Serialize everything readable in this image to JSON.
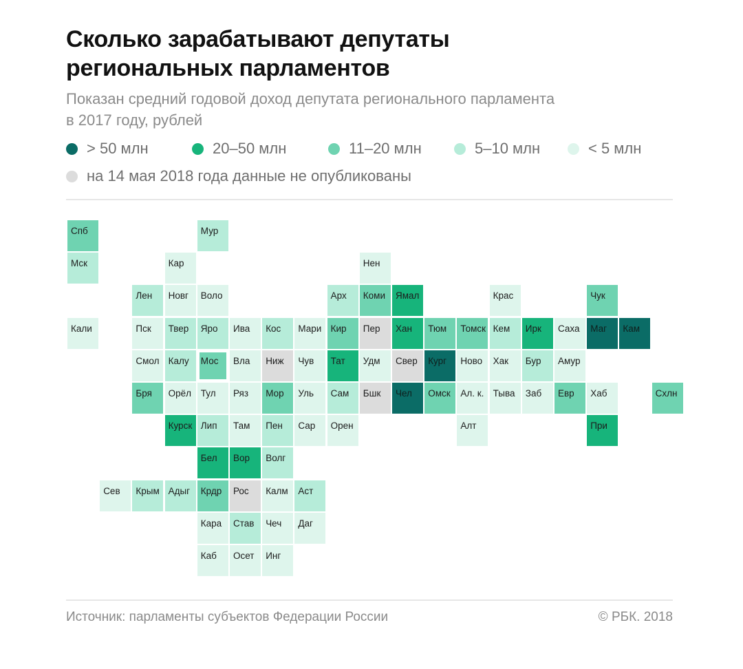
{
  "header": {
    "title_lines": [
      "Сколько зарабатывают депутаты",
      "региональных парламентов"
    ],
    "subtitle_lines": [
      "Показан средний годовой доход депутата регионального парламента",
      "в 2017 году, рублей"
    ]
  },
  "colors": {
    "gt50": "#0b6c66",
    "c20_50": "#17b47b",
    "c11_20": "#6fd3b1",
    "c5_10": "#b6ecd9",
    "lt5": "#def5ec",
    "nodata": "#dcdcdc"
  },
  "legend": [
    {
      "key": "gt50",
      "label": "> 50 млн"
    },
    {
      "key": "c20_50",
      "label": "20–50 млн"
    },
    {
      "key": "c11_20",
      "label": "11–20 млн"
    },
    {
      "key": "c5_10",
      "label": "5–10 млн"
    },
    {
      "key": "lt5",
      "label": "< 5 млн"
    }
  ],
  "legend_nodata": {
    "key": "nodata",
    "label": "на 14 мая 2018 года данные не опубликованы"
  },
  "regions": [
    {
      "label": "Спб",
      "col": 0,
      "row": 0,
      "cat": "c11_20"
    },
    {
      "label": "Мур",
      "col": 4,
      "row": 0,
      "cat": "c5_10"
    },
    {
      "label": "Мск",
      "col": 0,
      "row": 1,
      "cat": "c5_10"
    },
    {
      "label": "Кар",
      "col": 3,
      "row": 1,
      "cat": "lt5"
    },
    {
      "label": "Нен",
      "col": 9,
      "row": 1,
      "cat": "lt5"
    },
    {
      "label": "Лен",
      "col": 2,
      "row": 2,
      "cat": "c5_10"
    },
    {
      "label": "Новг",
      "col": 3,
      "row": 2,
      "cat": "lt5"
    },
    {
      "label": "Воло",
      "col": 4,
      "row": 2,
      "cat": "lt5"
    },
    {
      "label": "Арх",
      "col": 8,
      "row": 2,
      "cat": "c5_10"
    },
    {
      "label": "Коми",
      "col": 9,
      "row": 2,
      "cat": "c11_20"
    },
    {
      "label": "Ямал",
      "col": 10,
      "row": 2,
      "cat": "c20_50"
    },
    {
      "label": "Крас",
      "col": 13,
      "row": 2,
      "cat": "lt5"
    },
    {
      "label": "Чук",
      "col": 16,
      "row": 2,
      "cat": "c11_20"
    },
    {
      "label": "Кали",
      "col": 0,
      "row": 3,
      "cat": "lt5"
    },
    {
      "label": "Пск",
      "col": 2,
      "row": 3,
      "cat": "lt5"
    },
    {
      "label": "Твер",
      "col": 3,
      "row": 3,
      "cat": "c5_10"
    },
    {
      "label": "Яро",
      "col": 4,
      "row": 3,
      "cat": "c5_10"
    },
    {
      "label": "Ива",
      "col": 5,
      "row": 3,
      "cat": "lt5"
    },
    {
      "label": "Кос",
      "col": 6,
      "row": 3,
      "cat": "c5_10"
    },
    {
      "label": "Мари",
      "col": 7,
      "row": 3,
      "cat": "lt5"
    },
    {
      "label": "Кир",
      "col": 8,
      "row": 3,
      "cat": "c11_20"
    },
    {
      "label": "Пер",
      "col": 9,
      "row": 3,
      "cat": "nodata"
    },
    {
      "label": "Хан",
      "col": 10,
      "row": 3,
      "cat": "c20_50"
    },
    {
      "label": "Тюм",
      "col": 11,
      "row": 3,
      "cat": "c11_20"
    },
    {
      "label": "Томск",
      "col": 12,
      "row": 3,
      "cat": "c11_20"
    },
    {
      "label": "Кем",
      "col": 13,
      "row": 3,
      "cat": "c5_10"
    },
    {
      "label": "Ирк",
      "col": 14,
      "row": 3,
      "cat": "c20_50"
    },
    {
      "label": "Саха",
      "col": 15,
      "row": 3,
      "cat": "lt5"
    },
    {
      "label": "Маг",
      "col": 16,
      "row": 3,
      "cat": "gt50"
    },
    {
      "label": "Кам",
      "col": 17,
      "row": 3,
      "cat": "gt50"
    },
    {
      "label": "Смол",
      "col": 2,
      "row": 4,
      "cat": "lt5"
    },
    {
      "label": "Калу",
      "col": 3,
      "row": 4,
      "cat": "c5_10"
    },
    {
      "label": "Мос",
      "col": 4,
      "row": 4,
      "cat": "c11_20",
      "outlined": true
    },
    {
      "label": "Вла",
      "col": 5,
      "row": 4,
      "cat": "lt5"
    },
    {
      "label": "Ниж",
      "col": 6,
      "row": 4,
      "cat": "nodata"
    },
    {
      "label": "Чув",
      "col": 7,
      "row": 4,
      "cat": "lt5"
    },
    {
      "label": "Тат",
      "col": 8,
      "row": 4,
      "cat": "c20_50"
    },
    {
      "label": "Удм",
      "col": 9,
      "row": 4,
      "cat": "lt5"
    },
    {
      "label": "Свер",
      "col": 10,
      "row": 4,
      "cat": "nodata"
    },
    {
      "label": "Кург",
      "col": 11,
      "row": 4,
      "cat": "gt50"
    },
    {
      "label": "Ново",
      "col": 12,
      "row": 4,
      "cat": "lt5"
    },
    {
      "label": "Хак",
      "col": 13,
      "row": 4,
      "cat": "lt5"
    },
    {
      "label": "Бур",
      "col": 14,
      "row": 4,
      "cat": "c5_10"
    },
    {
      "label": "Амур",
      "col": 15,
      "row": 4,
      "cat": "lt5"
    },
    {
      "label": "Бря",
      "col": 2,
      "row": 5,
      "cat": "c11_20"
    },
    {
      "label": "Орёл",
      "col": 3,
      "row": 5,
      "cat": "lt5"
    },
    {
      "label": "Тул",
      "col": 4,
      "row": 5,
      "cat": "lt5"
    },
    {
      "label": "Ряз",
      "col": 5,
      "row": 5,
      "cat": "lt5"
    },
    {
      "label": "Мор",
      "col": 6,
      "row": 5,
      "cat": "c11_20"
    },
    {
      "label": "Уль",
      "col": 7,
      "row": 5,
      "cat": "lt5"
    },
    {
      "label": "Сам",
      "col": 8,
      "row": 5,
      "cat": "c5_10"
    },
    {
      "label": "Бшк",
      "col": 9,
      "row": 5,
      "cat": "nodata"
    },
    {
      "label": "Чел",
      "col": 10,
      "row": 5,
      "cat": "gt50"
    },
    {
      "label": "Омск",
      "col": 11,
      "row": 5,
      "cat": "c11_20"
    },
    {
      "label": "Ал. к.",
      "col": 12,
      "row": 5,
      "cat": "lt5"
    },
    {
      "label": "Тыва",
      "col": 13,
      "row": 5,
      "cat": "lt5"
    },
    {
      "label": "Заб",
      "col": 14,
      "row": 5,
      "cat": "lt5"
    },
    {
      "label": "Евр",
      "col": 15,
      "row": 5,
      "cat": "c11_20"
    },
    {
      "label": "Хаб",
      "col": 16,
      "row": 5,
      "cat": "lt5"
    },
    {
      "label": "Схлн",
      "col": 18,
      "row": 5,
      "cat": "c11_20"
    },
    {
      "label": "Курск",
      "col": 3,
      "row": 6,
      "cat": "c20_50"
    },
    {
      "label": "Лип",
      "col": 4,
      "row": 6,
      "cat": "c5_10"
    },
    {
      "label": "Там",
      "col": 5,
      "row": 6,
      "cat": "lt5"
    },
    {
      "label": "Пен",
      "col": 6,
      "row": 6,
      "cat": "c5_10"
    },
    {
      "label": "Сар",
      "col": 7,
      "row": 6,
      "cat": "lt5"
    },
    {
      "label": "Орен",
      "col": 8,
      "row": 6,
      "cat": "lt5"
    },
    {
      "label": "Алт",
      "col": 12,
      "row": 6,
      "cat": "lt5"
    },
    {
      "label": "При",
      "col": 16,
      "row": 6,
      "cat": "c20_50"
    },
    {
      "label": "Бел",
      "col": 4,
      "row": 7,
      "cat": "c20_50"
    },
    {
      "label": "Вор",
      "col": 5,
      "row": 7,
      "cat": "c20_50"
    },
    {
      "label": "Волг",
      "col": 6,
      "row": 7,
      "cat": "c5_10"
    },
    {
      "label": "Сев",
      "col": 1,
      "row": 8,
      "cat": "lt5"
    },
    {
      "label": "Крым",
      "col": 2,
      "row": 8,
      "cat": "c5_10"
    },
    {
      "label": "Адыг",
      "col": 3,
      "row": 8,
      "cat": "c5_10"
    },
    {
      "label": "Крдр",
      "col": 4,
      "row": 8,
      "cat": "c11_20"
    },
    {
      "label": "Рос",
      "col": 5,
      "row": 8,
      "cat": "nodata"
    },
    {
      "label": "Калм",
      "col": 6,
      "row": 8,
      "cat": "lt5"
    },
    {
      "label": "Аст",
      "col": 7,
      "row": 8,
      "cat": "c5_10"
    },
    {
      "label": "Кара",
      "col": 4,
      "row": 9,
      "cat": "lt5"
    },
    {
      "label": "Став",
      "col": 5,
      "row": 9,
      "cat": "c5_10"
    },
    {
      "label": "Чеч",
      "col": 6,
      "row": 9,
      "cat": "lt5"
    },
    {
      "label": "Даг",
      "col": 7,
      "row": 9,
      "cat": "lt5"
    },
    {
      "label": "Каб",
      "col": 4,
      "row": 10,
      "cat": "lt5"
    },
    {
      "label": "Осет",
      "col": 5,
      "row": 10,
      "cat": "lt5"
    },
    {
      "label": "Инг",
      "col": 6,
      "row": 10,
      "cat": "lt5"
    }
  ],
  "footer": {
    "source": "Источник: парламенты субъектов Федерации России",
    "copyright": "© РБК. 2018"
  }
}
